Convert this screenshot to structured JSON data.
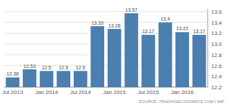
{
  "chart_data": {
    "type": "bar",
    "categories": [
      "Jul 2013",
      null,
      "Jan 2014",
      null,
      "Jul 2014",
      null,
      "Jan 2015",
      null,
      "Jul 2015",
      null,
      "Jan 2016",
      null
    ],
    "values": [
      12.38,
      12.53,
      12.5,
      12.5,
      12.5,
      13.33,
      13.28,
      13.57,
      13.17,
      13.4,
      13.22,
      13.17
    ],
    "color": "#4a7faf",
    "ylim": [
      12.2,
      13.65
    ],
    "yticks": [
      12.2,
      12.4,
      12.6,
      12.8,
      {
        "value": 13.0,
        "label": "13.0"
      },
      13.2,
      13.4,
      13.6
    ],
    "grid": true,
    "data_labels": true,
    "annotations": [
      "SOURCE: TRADINGECONOMICS.COM | IMF"
    ]
  }
}
